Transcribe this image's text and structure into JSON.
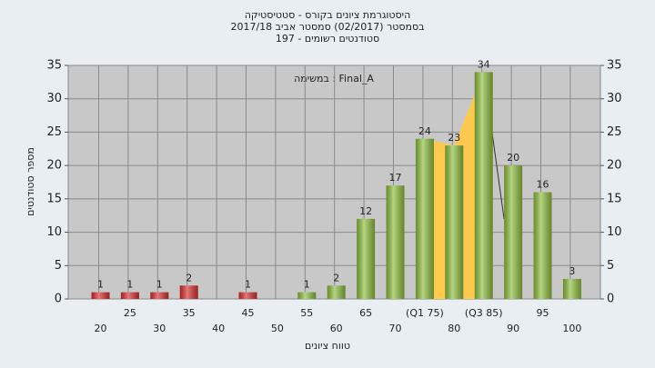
{
  "chart_data": {
    "type": "bar",
    "title": [
      "היסטוגרמת ציונים בקורס - סטטיסטיקה",
      "בסמסטר  (02/2017)  סמסטר אביב 2017/18",
      "סטודנטים רשומים - 197"
    ],
    "annotation": "Final_A : במשימה",
    "x_label": "טווח ציונים",
    "y_label": "מספר סטודנטים",
    "categories": [
      "20",
      "25",
      "30",
      "35",
      "40",
      "45",
      "50",
      "55",
      "60",
      "65",
      "70",
      "(Q1 75)",
      "80",
      "(Q3 85)",
      "90",
      "95",
      "100"
    ],
    "values": [
      1,
      1,
      1,
      2,
      0,
      1,
      0,
      1,
      2,
      12,
      17,
      24,
      23,
      34,
      20,
      16,
      3
    ],
    "colors": [
      "#d93030",
      "#d93030",
      "#d93030",
      "#d93030",
      "#d93030",
      "#d93030",
      "#d93030",
      "#8fbf3f",
      "#8fbf3f",
      "#8fbf3f",
      "#8fbf3f",
      "#8fbf3f",
      "#8fbf3f",
      "#8fbf3f",
      "#8fbf3f",
      "#8fbf3f",
      "#8fbf3f"
    ],
    "iqr_color": "#ffc94d",
    "ylim": [
      0,
      35
    ],
    "yticks": [
      0,
      5,
      10,
      15,
      20,
      25,
      30,
      35
    ],
    "grid": true
  }
}
